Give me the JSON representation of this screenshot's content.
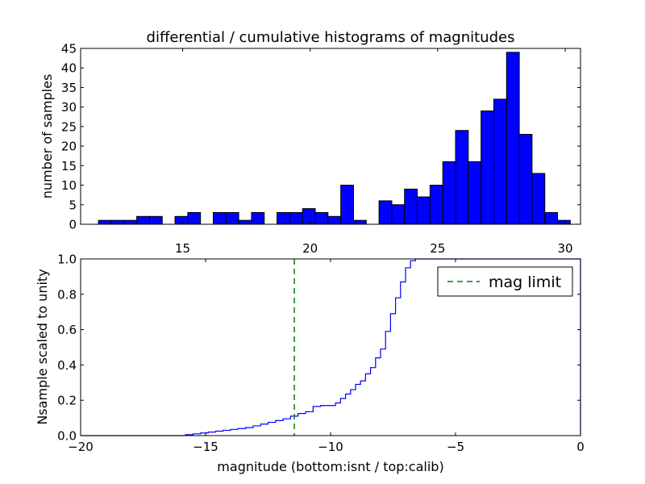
{
  "title": "differential / cumulative histograms of magnitudes",
  "chart_data": [
    {
      "type": "bar",
      "subtype": "histogram",
      "ylabel": "number of samples",
      "xlim": [
        11.0,
        30.6
      ],
      "ylim": [
        0,
        45
      ],
      "xticks": [
        15,
        20,
        25,
        30
      ],
      "yticks": [
        0,
        5,
        10,
        15,
        20,
        25,
        30,
        35,
        40,
        45
      ],
      "xtick_position": "top-axis-below-plot",
      "bar_color": "#0000ff",
      "bin_width": 0.5,
      "bins": [
        {
          "x": 11.95,
          "v": 1
        },
        {
          "x": 12.45,
          "v": 1
        },
        {
          "x": 12.95,
          "v": 1
        },
        {
          "x": 13.45,
          "v": 2
        },
        {
          "x": 13.95,
          "v": 2
        },
        {
          "x": 14.45,
          "v": 0
        },
        {
          "x": 14.95,
          "v": 2
        },
        {
          "x": 15.45,
          "v": 3
        },
        {
          "x": 15.95,
          "v": 0
        },
        {
          "x": 16.45,
          "v": 3
        },
        {
          "x": 16.95,
          "v": 3
        },
        {
          "x": 17.45,
          "v": 1
        },
        {
          "x": 17.95,
          "v": 3
        },
        {
          "x": 18.45,
          "v": 0
        },
        {
          "x": 18.95,
          "v": 3
        },
        {
          "x": 19.45,
          "v": 3
        },
        {
          "x": 19.95,
          "v": 4
        },
        {
          "x": 20.45,
          "v": 3
        },
        {
          "x": 20.95,
          "v": 2
        },
        {
          "x": 21.45,
          "v": 10
        },
        {
          "x": 21.95,
          "v": 1
        },
        {
          "x": 22.45,
          "v": 0
        },
        {
          "x": 22.95,
          "v": 6
        },
        {
          "x": 23.45,
          "v": 5
        },
        {
          "x": 23.95,
          "v": 9
        },
        {
          "x": 24.45,
          "v": 7
        },
        {
          "x": 24.95,
          "v": 10
        },
        {
          "x": 25.45,
          "v": 16
        },
        {
          "x": 25.95,
          "v": 24
        },
        {
          "x": 26.45,
          "v": 16
        },
        {
          "x": 26.95,
          "v": 29
        },
        {
          "x": 27.45,
          "v": 32
        },
        {
          "x": 27.95,
          "v": 44
        },
        {
          "x": 28.45,
          "v": 23
        },
        {
          "x": 28.95,
          "v": 13
        },
        {
          "x": 29.45,
          "v": 3
        },
        {
          "x": 29.95,
          "v": 1
        }
      ]
    },
    {
      "type": "line",
      "subtype": "cumulative-step",
      "xlabel": "magnitude (bottom:isnt / top:calib)",
      "ylabel": "Nsample scaled to unity",
      "xlim": [
        -20,
        0
      ],
      "ylim": [
        0.0,
        1.0
      ],
      "xticks": [
        -20,
        -15,
        -10,
        -5,
        0
      ],
      "yticks": [
        0.0,
        0.2,
        0.4,
        0.6,
        0.8,
        1.0
      ],
      "series": [
        {
          "color": "#0000ff",
          "step": true,
          "x": [
            -20,
            -15.8,
            -15.5,
            -15.2,
            -14.9,
            -14.6,
            -14.3,
            -14.0,
            -13.7,
            -13.4,
            -13.1,
            -12.8,
            -12.5,
            -12.2,
            -11.9,
            -11.6,
            -11.3,
            -11.0,
            -10.7,
            -10.4,
            -10.1,
            -9.8,
            -9.6,
            -9.4,
            -9.2,
            -9.0,
            -8.8,
            -8.6,
            -8.4,
            -8.2,
            -8.0,
            -7.8,
            -7.6,
            -7.4,
            -7.2,
            -7.0,
            -6.8,
            -6.6,
            -0.05
          ],
          "y": [
            0.0,
            0.005,
            0.01,
            0.015,
            0.02,
            0.025,
            0.03,
            0.035,
            0.04,
            0.045,
            0.055,
            0.065,
            0.075,
            0.085,
            0.095,
            0.11,
            0.125,
            0.135,
            0.165,
            0.17,
            0.17,
            0.185,
            0.21,
            0.235,
            0.26,
            0.29,
            0.31,
            0.35,
            0.385,
            0.44,
            0.49,
            0.59,
            0.69,
            0.78,
            0.87,
            0.95,
            0.99,
            1.0,
            1.0
          ]
        }
      ],
      "vline": {
        "x": -11.45,
        "color": "#008000",
        "style": "dashed",
        "label": "mag limit"
      },
      "legend_position": "top-right"
    }
  ]
}
